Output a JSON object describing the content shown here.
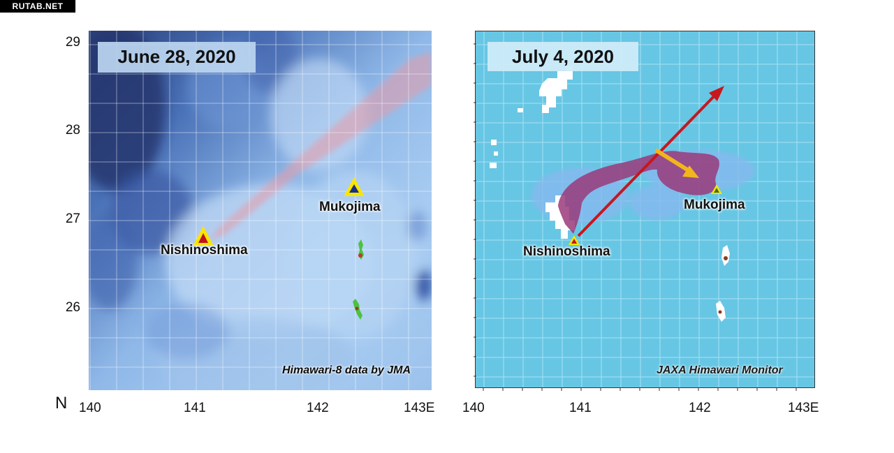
{
  "watermark": "RUTAB.NET",
  "left_panel": {
    "date": "June 28, 2020",
    "credit": "Himawari-8 data by JMA",
    "labels": {
      "nishinoshima": "Nishinoshima",
      "mukojima": "Mukojima"
    }
  },
  "right_panel": {
    "date": "July 4, 2020",
    "credit": "JAXA Himawari Monitor",
    "labels": {
      "nishinoshima": "Nishinoshima",
      "mukojima": "Mukojima"
    }
  },
  "axes": {
    "latitude_ticks": [
      "29",
      "28",
      "27",
      "26"
    ],
    "north_label": "N",
    "left_longitude_ticks": [
      "140",
      "141",
      "142",
      "143E"
    ],
    "right_longitude_ticks": [
      "140",
      "141",
      "142",
      "143E"
    ]
  },
  "colors": {
    "plume_left": "#e89aa6",
    "plume_right": "#9a3a7a",
    "arrow_red": "#c8161d",
    "arrow_yellow": "#f2b51c",
    "volcano_marker": "#f5e600"
  },
  "icons": [
    "volcano-triangle-icon",
    "plume-direction-arrow-icon",
    "wind-direction-arrow-icon"
  ]
}
